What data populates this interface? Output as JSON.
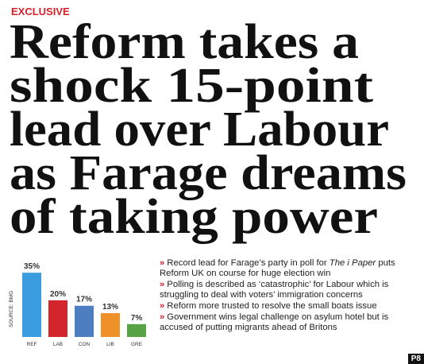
{
  "kicker": "EXCLUSIVE",
  "headline": [
    "Reform takes a",
    "shock 15-point",
    "lead over Labour",
    "as Farage dreams",
    "of taking power"
  ],
  "chart_data": {
    "type": "bar",
    "source": "SOURCE: BMG",
    "categories": [
      "REF",
      "LAB",
      "CON",
      "LIB",
      "GRE"
    ],
    "values": [
      35,
      20,
      17,
      13,
      7
    ],
    "value_labels": [
      "35%",
      "20%",
      "17%",
      "13%",
      "7%"
    ],
    "colors": [
      "#3a9de0",
      "#d3262c",
      "#4d7ec1",
      "#ee9129",
      "#58a444"
    ]
  },
  "bullet_marker": "»",
  "bullets": [
    [
      "Record lead for Farage’s party in poll for ",
      "The i Paper",
      " puts Reform UK on course for huge election win"
    ],
    [
      "Polling is described as ‘catastrophic’ for Labour which is struggling to deal with voters’ immigration concerns"
    ],
    [
      "Reform more trusted to resolve the small boats issue"
    ],
    [
      "Government wins legal challenge on asylum hotel but is accused of putting migrants ahead of Britons"
    ]
  ],
  "page": "P8"
}
